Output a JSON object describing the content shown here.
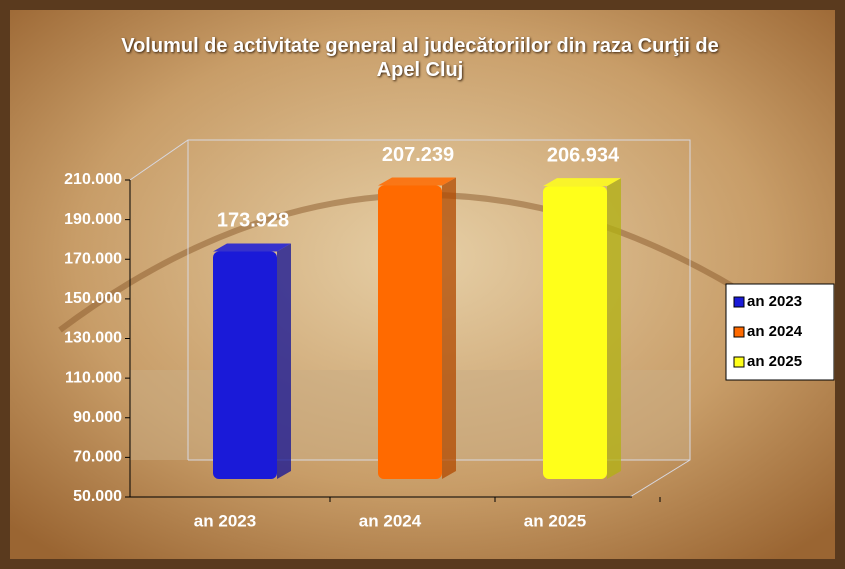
{
  "chart_data": {
    "type": "bar",
    "title": "Volumul de activitate general al judecătoriilor din raza Curţii de Apel Cluj",
    "categories": [
      "an 2023",
      "an 2024",
      "an 2025"
    ],
    "values": [
      173928,
      207239,
      206934
    ],
    "value_labels": [
      "173.928",
      "207.239",
      "206.934"
    ],
    "colors": [
      "#1a1ad8",
      "#ff6a00",
      "#ffff1a"
    ],
    "ylim": [
      50000,
      210000
    ],
    "yticks": [
      {
        "value": 50000,
        "label": "50.000"
      },
      {
        "value": 70000,
        "label": "70.000"
      },
      {
        "value": 90000,
        "label": "90.000"
      },
      {
        "value": 110000,
        "label": "110.000"
      },
      {
        "value": 130000,
        "label": "130.000"
      },
      {
        "value": 150000,
        "label": "150.000"
      },
      {
        "value": 170000,
        "label": "170.000"
      },
      {
        "value": 190000,
        "label": "190.000"
      },
      {
        "value": 210000,
        "label": "210.000"
      }
    ],
    "legend": "right"
  }
}
